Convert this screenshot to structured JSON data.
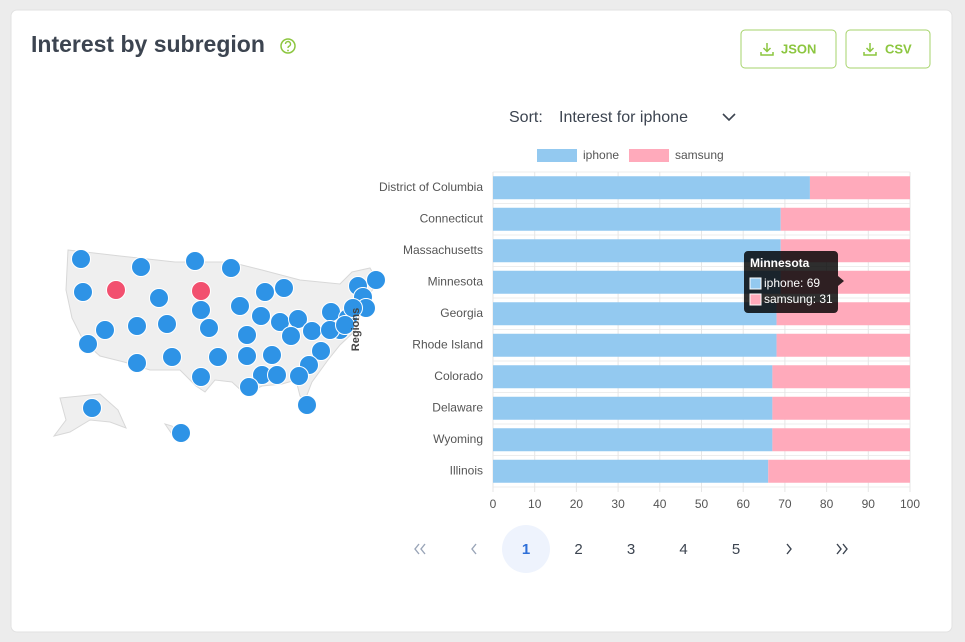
{
  "header": {
    "title": "Interest by subregion",
    "buttons": [
      "JSON",
      "CSV"
    ]
  },
  "sort": {
    "label": "Sort:",
    "value": "Interest for iphone"
  },
  "chart_data": {
    "type": "bar",
    "orientation": "horizontal",
    "stacked": true,
    "y_label": "Regions",
    "categories": [
      "District of Columbia",
      "Connecticut",
      "Massachusetts",
      "Minnesota",
      "Georgia",
      "Rhode Island",
      "Colorado",
      "Delaware",
      "Wyoming",
      "Illinois"
    ],
    "series": [
      {
        "name": "iphone",
        "color": "#93c9f0",
        "values": [
          76,
          69,
          69,
          69,
          68,
          68,
          67,
          67,
          67,
          66
        ]
      },
      {
        "name": "samsung",
        "color": "#ffaabb",
        "values": [
          24,
          31,
          31,
          31,
          32,
          32,
          33,
          33,
          33,
          34
        ]
      }
    ],
    "xlim": [
      0,
      100
    ],
    "xticks": [
      0,
      10,
      20,
      30,
      40,
      50,
      60,
      70,
      80,
      90,
      100
    ],
    "grid": true,
    "legend": "top"
  },
  "tooltip": {
    "title": "Minnesota",
    "lines": [
      "iphone: 69",
      "samsung: 31"
    ]
  },
  "pagination": {
    "pages": [
      1,
      2,
      3,
      4,
      5
    ],
    "current": 1
  }
}
